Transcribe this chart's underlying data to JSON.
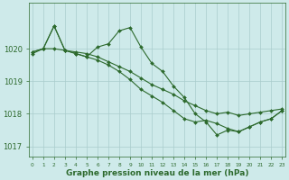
{
  "series": [
    {
      "x": [
        0,
        1,
        2,
        3,
        4,
        5,
        6,
        7,
        8,
        9,
        10,
        11,
        12,
        13,
        14,
        15,
        16,
        17,
        18,
        19,
        20,
        21,
        22,
        23
      ],
      "y": [
        1019.9,
        1020.0,
        1020.0,
        1019.95,
        1019.9,
        1019.85,
        1019.75,
        1019.6,
        1019.45,
        1019.3,
        1019.1,
        1018.9,
        1018.75,
        1018.6,
        1018.4,
        1018.25,
        1018.1,
        1018.0,
        1018.05,
        1017.95,
        1018.0,
        1018.05,
        1018.1,
        1018.15
      ],
      "color": "#2d6a2d",
      "linewidth": 0.8,
      "marker": "D",
      "markersize": 2.0
    },
    {
      "x": [
        0,
        1,
        2,
        3,
        4,
        5,
        6,
        7,
        8,
        9,
        10,
        11,
        12,
        13,
        14,
        15,
        16,
        17,
        18,
        19,
        20,
        21,
        22,
        23
      ],
      "y": [
        1019.9,
        1020.0,
        1020.7,
        1019.95,
        1019.85,
        1019.75,
        1020.05,
        1020.15,
        1020.55,
        1020.65,
        1020.05,
        1019.55,
        1019.3,
        1018.85,
        1018.5,
        1018.0,
        1017.75,
        1017.35,
        1017.5,
        1017.45,
        1017.6,
        1017.75,
        1017.85,
        1018.1
      ],
      "color": "#2d6a2d",
      "linewidth": 0.8,
      "marker": "D",
      "markersize": 2.0
    },
    {
      "x": [
        0,
        1,
        2,
        3,
        4,
        5,
        6,
        7,
        8,
        9,
        10,
        11,
        12,
        13,
        14,
        15,
        16,
        17,
        18,
        19,
        20,
        21,
        22,
        23
      ],
      "y": [
        1019.85,
        1020.0,
        1020.7,
        1019.95,
        1019.85,
        1019.75,
        1019.65,
        1019.5,
        1019.3,
        1019.05,
        1018.75,
        1018.55,
        1018.35,
        1018.1,
        1017.85,
        1017.75,
        1017.8,
        1017.7,
        1017.55,
        1017.45,
        1017.6,
        1017.75,
        1017.85,
        1018.1
      ],
      "color": "#2d6a2d",
      "linewidth": 0.8,
      "marker": "D",
      "markersize": 2.0
    }
  ],
  "xlim": [
    -0.3,
    23.3
  ],
  "ylim": [
    1016.7,
    1021.4
  ],
  "yticks": [
    1017,
    1018,
    1019,
    1020
  ],
  "xticks": [
    0,
    1,
    2,
    3,
    4,
    5,
    6,
    7,
    8,
    9,
    10,
    11,
    12,
    13,
    14,
    15,
    16,
    17,
    18,
    19,
    20,
    21,
    22,
    23
  ],
  "xlabel": "Graphe pression niveau de la mer (hPa)",
  "background_color": "#ceeaea",
  "grid_color": "#aacccc",
  "tick_color": "#2d6a2d",
  "label_color": "#2d6a2d",
  "axis_color": "#2d6a2d",
  "xlabel_fontsize": 6.5,
  "ytick_fontsize": 6,
  "xtick_fontsize": 4.2
}
